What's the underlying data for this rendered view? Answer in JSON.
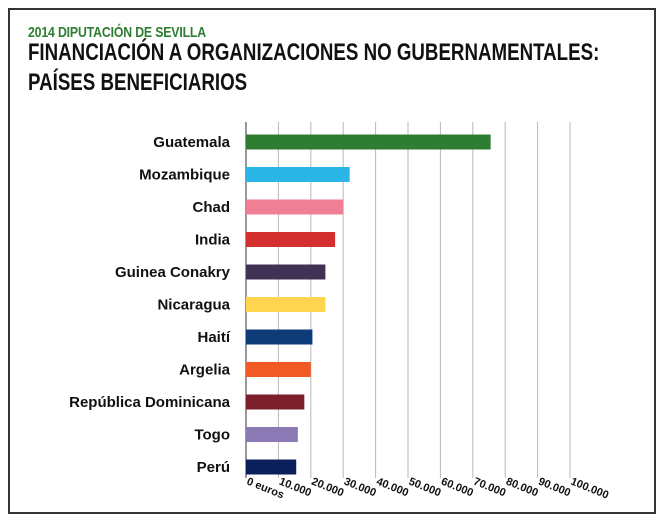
{
  "header": {
    "supertitle": "2014 DIPUTACIÓN DE SEVILLA",
    "title_line1": "FINANCIACIÓN A ORGANIZACIONES NO GUBERNAMENTALES:",
    "title_line2": "PAÍSES BENEFICIARIOS"
  },
  "chart_data": {
    "type": "bar",
    "orientation": "horizontal",
    "categories": [
      "Guatemala",
      "Mozambique",
      "Chad",
      "India",
      "Guinea Conakry",
      "Nicaragua",
      "Haití",
      "Argelia",
      "República Dominicana",
      "Togo",
      "Perú"
    ],
    "values": [
      75500,
      32000,
      30000,
      27500,
      24500,
      24500,
      20500,
      20000,
      18000,
      16000,
      15500
    ],
    "colors": [
      "#2e7d32",
      "#29b6e6",
      "#ee7f94",
      "#d32f2f",
      "#413253",
      "#ffd54f",
      "#0d3c78",
      "#f05a24",
      "#7b1f2b",
      "#8a79b5",
      "#0b1f5a"
    ],
    "xlim": [
      0,
      100000
    ],
    "xticks": [
      0,
      10000,
      20000,
      30000,
      40000,
      50000,
      60000,
      70000,
      80000,
      90000,
      100000
    ],
    "xtick_labels": [
      "0 euros",
      "10.000",
      "20.000",
      "30.000",
      "40.000",
      "50.000",
      "60.000",
      "70.000",
      "80.000",
      "90.000",
      "100.000"
    ],
    "grid": true,
    "legend": "none"
  }
}
